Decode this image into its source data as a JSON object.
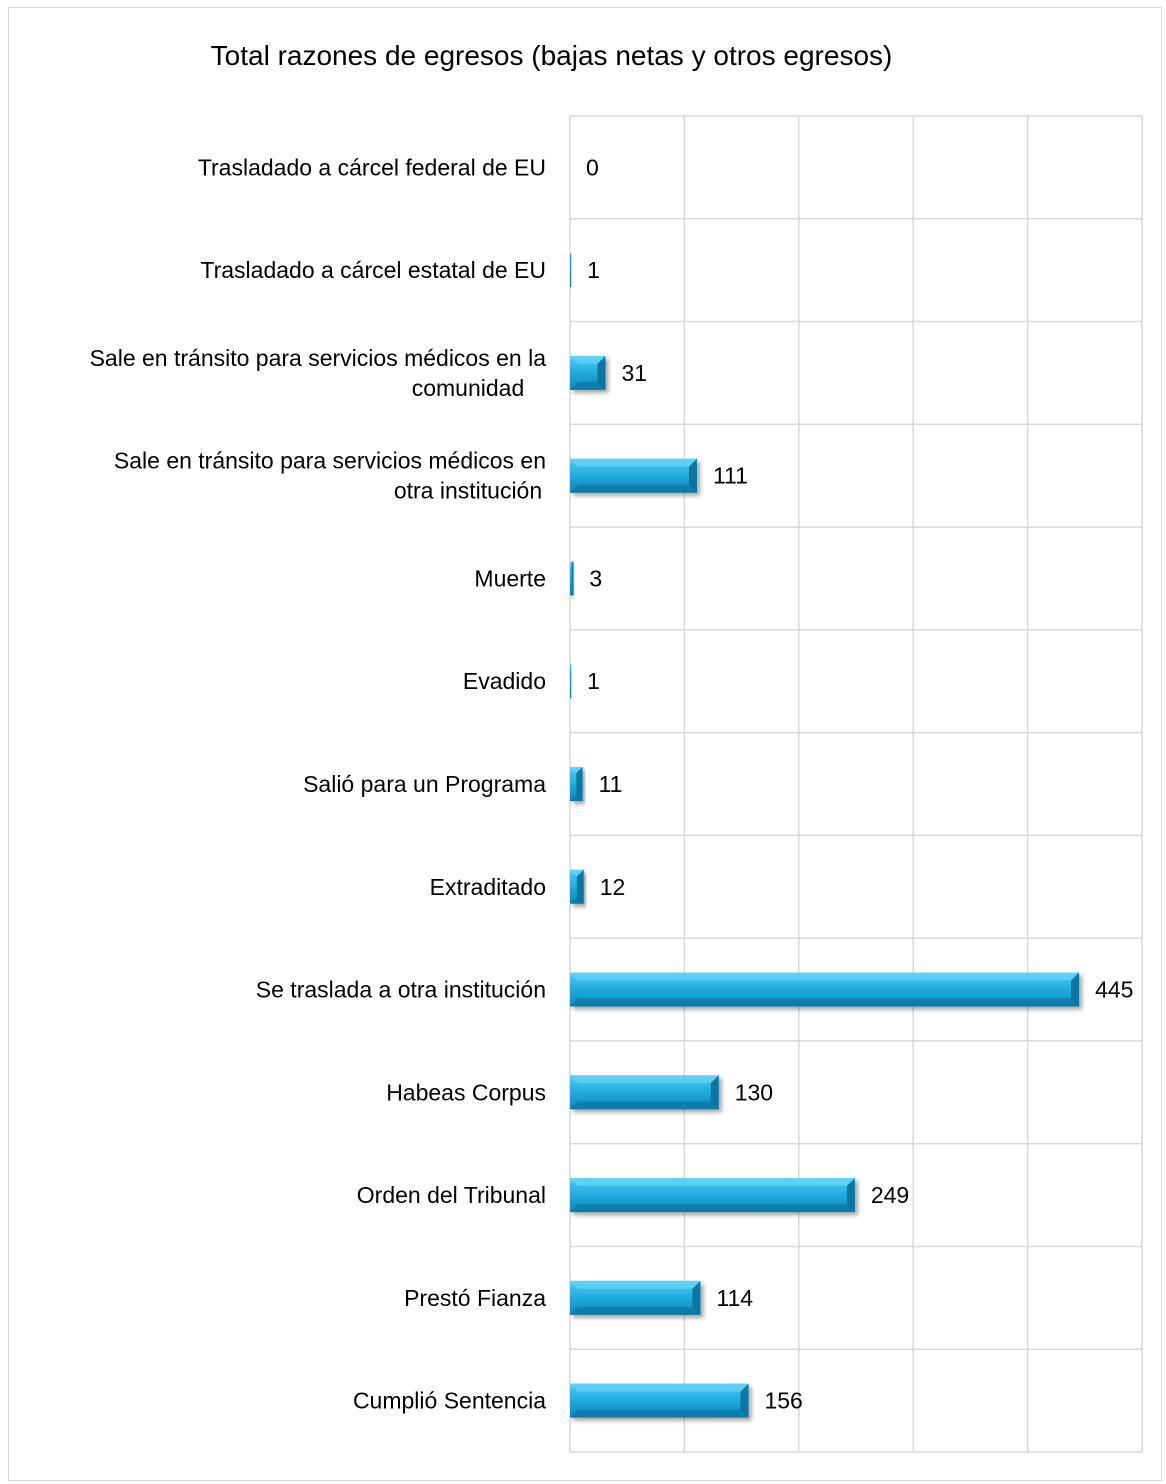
{
  "chart_data": {
    "type": "bar",
    "orientation": "horizontal",
    "title": "Total razones de egresos (bajas netas y otros egresos)",
    "categories": [
      "Trasladado a cárcel federal de EU",
      "Trasladado a cárcel estatal de EU",
      "Sale en tránsito para servicios médicos en la comunidad",
      "Sale en tránsito para servicios médicos en otra institución",
      "Muerte",
      "Evadido",
      "Salió para un Programa",
      "Extraditado",
      "Se traslada a otra institución",
      "Habeas Corpus",
      "Orden del Tribunal",
      "Prestó Fianza",
      "Cumplió Sentencia"
    ],
    "category_lines": [
      [
        "Trasladado a cárcel federal de EU"
      ],
      [
        "Trasladado a cárcel estatal de EU"
      ],
      [
        "Sale en tránsito para servicios médicos en la",
        "comunidad"
      ],
      [
        "Sale en tránsito para servicios médicos en",
        "otra institución"
      ],
      [
        "Muerte"
      ],
      [
        "Evadido"
      ],
      [
        "Salió para un Programa"
      ],
      [
        "Extraditado"
      ],
      [
        "Se traslada a otra institución"
      ],
      [
        "Habeas Corpus"
      ],
      [
        "Orden del Tribunal"
      ],
      [
        "Prestó Fianza"
      ],
      [
        "Cumplió Sentencia"
      ]
    ],
    "values": [
      0,
      1,
      31,
      111,
      3,
      1,
      11,
      12,
      445,
      130,
      249,
      114,
      156
    ],
    "xlim": [
      0,
      500
    ],
    "xticks": [
      0,
      100,
      200,
      300,
      400,
      500
    ],
    "x_tick_labels_visible": false,
    "grid": true,
    "legend": "none",
    "colors": {
      "bar_fill": "#1fa7db",
      "bar_light": "#5fd0f5",
      "bar_dark": "#0b6f99",
      "grid": "#d9d9d9",
      "frame": "#d9d9d9"
    }
  }
}
